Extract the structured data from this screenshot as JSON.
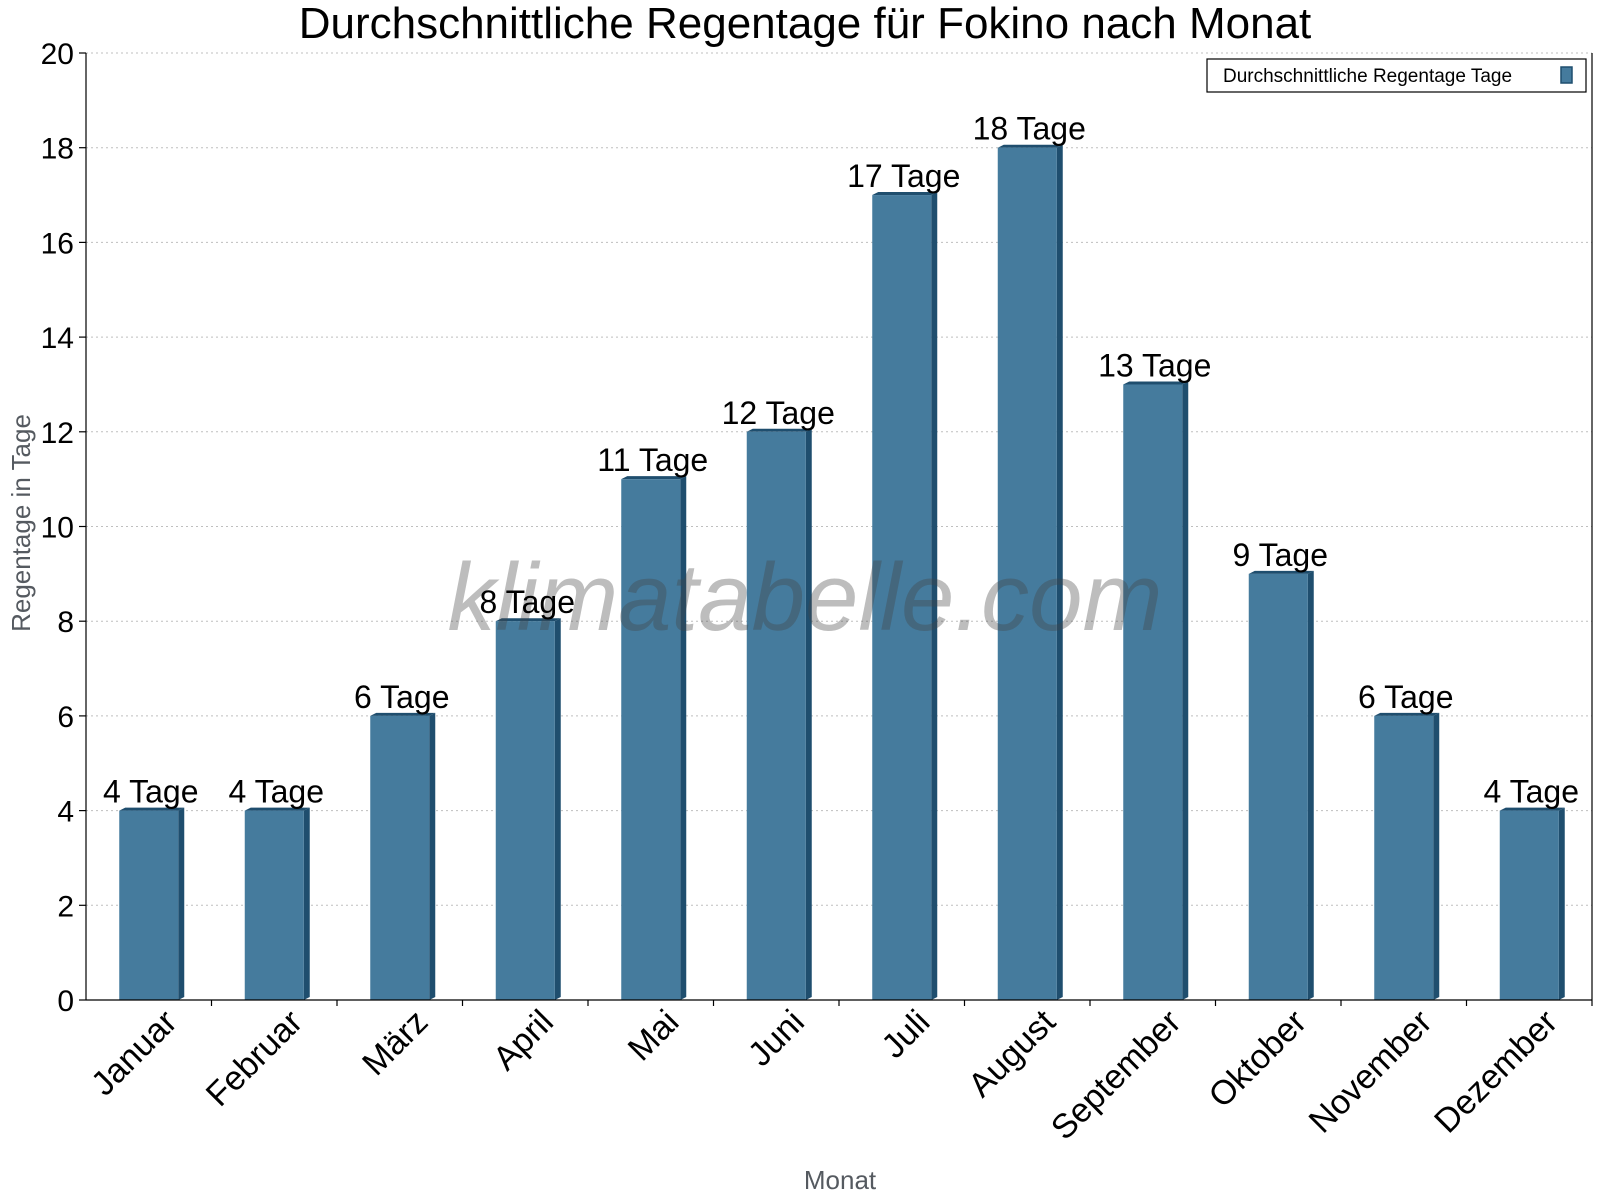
{
  "chart_data": {
    "type": "bar",
    "title": "Durchschnittliche Regentage für Fokino nach Monat",
    "xlabel": "Monat",
    "ylabel": "Regentage in Tage",
    "ylim": [
      0,
      20
    ],
    "yticks": [
      0,
      2,
      4,
      6,
      8,
      10,
      12,
      14,
      16,
      18,
      20
    ],
    "grid": "horizontal-dotted",
    "legend_position": "top-right",
    "categories": [
      "Januar",
      "Februar",
      "März",
      "April",
      "Mai",
      "Juni",
      "Juli",
      "August",
      "September",
      "Oktober",
      "November",
      "Dezember"
    ],
    "series": [
      {
        "name": "Durchschnittliche Regentage Tage",
        "values": [
          4,
          4,
          6,
          8,
          11,
          12,
          17,
          18,
          13,
          9,
          6,
          4
        ],
        "data_labels": [
          "4 Tage",
          "4 Tage",
          "6 Tage",
          "8 Tage",
          "11 Tage",
          "12 Tage",
          "17 Tage",
          "18 Tage",
          "13 Tage",
          "9 Tage",
          "6 Tage",
          "4 Tage"
        ],
        "color": "#457b9d",
        "side_color": "#1f4e6e"
      }
    ]
  },
  "watermark": "klimatabelle.com"
}
